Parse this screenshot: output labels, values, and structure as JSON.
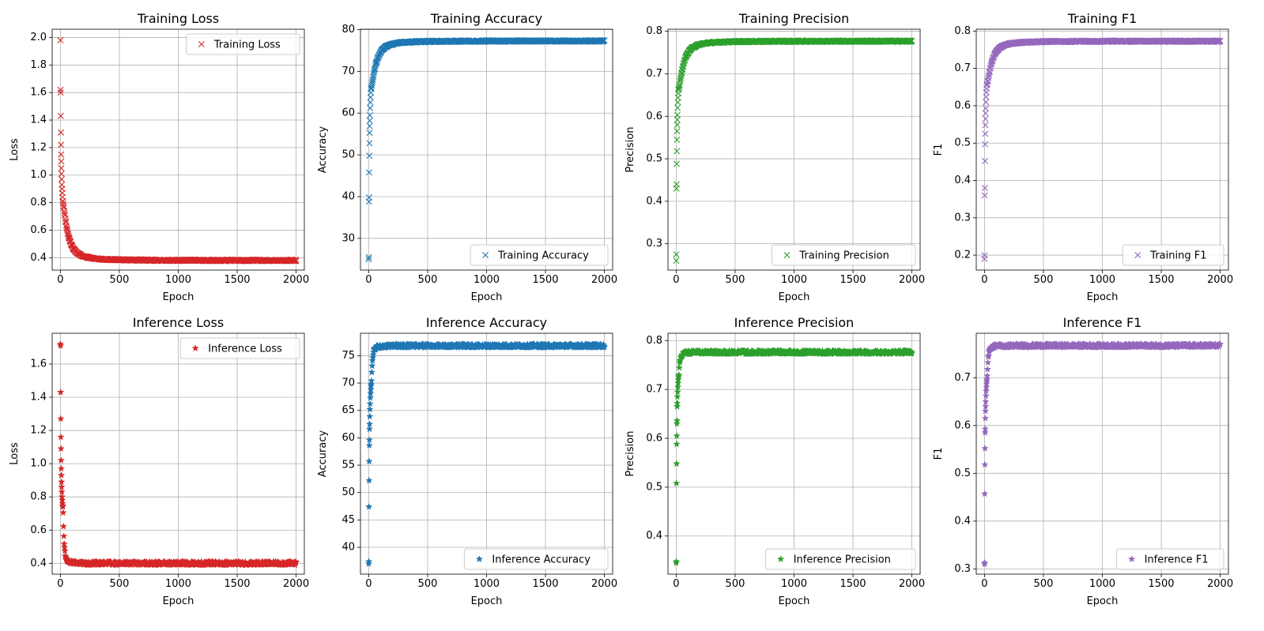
{
  "chart_data": [
    {
      "type": "scatter",
      "title": "Training Loss",
      "xlabel": "Epoch",
      "ylabel": "Loss",
      "marker": "x",
      "color": "#d62728",
      "xlim": [
        -70,
        2070
      ],
      "ylim": [
        0.31,
        2.06
      ],
      "xticks": [
        0,
        500,
        1000,
        1500,
        2000
      ],
      "yticks": [
        0.4,
        0.6,
        0.8,
        1.0,
        1.2,
        1.4,
        1.6,
        1.8,
        2.0
      ],
      "ytick_decimals": 1,
      "grid": true,
      "legend_position": "upper right",
      "series": [
        {
          "name": "Training Loss",
          "early": [
            [
              0,
              1.98
            ],
            [
              1,
              1.62
            ],
            [
              2,
              1.6
            ],
            [
              3,
              1.43
            ],
            [
              4,
              1.31
            ],
            [
              5,
              1.22
            ],
            [
              6,
              1.15
            ],
            [
              7,
              1.1
            ],
            [
              8,
              1.05
            ],
            [
              9,
              1.01
            ],
            [
              10,
              0.97
            ],
            [
              12,
              0.93
            ],
            [
              14,
              0.9
            ],
            [
              16,
              0.87
            ],
            [
              18,
              0.84
            ],
            [
              20,
              0.81
            ]
          ],
          "curve": {
            "start": 20,
            "start_value": 0.81,
            "final": 0.38,
            "curve_rate": 0.00035,
            "end": 2000
          }
        }
      ]
    },
    {
      "type": "scatter",
      "title": "Training Accuracy",
      "xlabel": "Epoch",
      "ylabel": "Accuracy",
      "marker": "x",
      "color": "#1f77b4",
      "xlim": [
        -70,
        2070
      ],
      "ylim": [
        22.4,
        80.1
      ],
      "xticks": [
        0,
        500,
        1000,
        1500,
        2000
      ],
      "yticks": [
        30,
        40,
        50,
        60,
        70,
        80
      ],
      "ytick_decimals": 0,
      "grid": true,
      "legend_position": "lower right",
      "series": [
        {
          "name": "Training Accuracy",
          "early": [
            [
              0,
              25.0
            ],
            [
              1,
              25.5
            ],
            [
              2,
              38.8
            ],
            [
              3,
              39.8
            ],
            [
              4,
              45.8
            ],
            [
              5,
              49.8
            ],
            [
              6,
              52.8
            ],
            [
              7,
              55.3
            ],
            [
              8,
              56.9
            ],
            [
              9,
              58.2
            ],
            [
              10,
              59.5
            ],
            [
              12,
              61.2
            ],
            [
              14,
              62.6
            ],
            [
              16,
              63.8
            ],
            [
              18,
              64.9
            ],
            [
              20,
              65.8
            ]
          ],
          "curve": {
            "start": 20,
            "start_value": 65.8,
            "final": 77.3,
            "curve_rate": 0.00035,
            "end": 2000
          }
        }
      ]
    },
    {
      "type": "scatter",
      "title": "Training Precision",
      "xlabel": "Epoch",
      "ylabel": "Precision",
      "marker": "x",
      "color": "#2ca02c",
      "xlim": [
        -70,
        2070
      ],
      "ylim": [
        0.238,
        0.805
      ],
      "xticks": [
        0,
        500,
        1000,
        1500,
        2000
      ],
      "yticks": [
        0.3,
        0.4,
        0.5,
        0.6,
        0.7,
        0.8
      ],
      "ytick_decimals": 1,
      "grid": true,
      "legend_position": "lower right",
      "series": [
        {
          "name": "Training Precision",
          "early": [
            [
              0,
              0.26
            ],
            [
              1,
              0.275
            ],
            [
              2,
              0.43
            ],
            [
              3,
              0.44
            ],
            [
              4,
              0.488
            ],
            [
              5,
              0.518
            ],
            [
              6,
              0.545
            ],
            [
              7,
              0.565
            ],
            [
              8,
              0.58
            ],
            [
              9,
              0.592
            ],
            [
              10,
              0.603
            ],
            [
              12,
              0.62
            ],
            [
              14,
              0.633
            ],
            [
              16,
              0.644
            ],
            [
              18,
              0.654
            ],
            [
              20,
              0.662
            ]
          ],
          "curve": {
            "start": 20,
            "start_value": 0.662,
            "final": 0.777,
            "curve_rate": 0.00035,
            "end": 2000
          }
        }
      ]
    },
    {
      "type": "scatter",
      "title": "Training F1",
      "xlabel": "Epoch",
      "ylabel": "F1",
      "marker": "x",
      "color": "#9467bd",
      "xlim": [
        -70,
        2070
      ],
      "ylim": [
        0.16,
        0.805
      ],
      "xticks": [
        0,
        500,
        1000,
        1500,
        2000
      ],
      "yticks": [
        0.2,
        0.3,
        0.4,
        0.5,
        0.6,
        0.7,
        0.8
      ],
      "ytick_decimals": 1,
      "grid": true,
      "legend_position": "lower right",
      "series": [
        {
          "name": "Training F1",
          "early": [
            [
              0,
              0.19
            ],
            [
              1,
              0.2
            ],
            [
              2,
              0.36
            ],
            [
              3,
              0.38
            ],
            [
              4,
              0.452
            ],
            [
              5,
              0.497
            ],
            [
              6,
              0.525
            ],
            [
              7,
              0.548
            ],
            [
              8,
              0.565
            ],
            [
              9,
              0.58
            ],
            [
              10,
              0.593
            ],
            [
              12,
              0.61
            ],
            [
              14,
              0.624
            ],
            [
              16,
              0.636
            ],
            [
              18,
              0.646
            ],
            [
              20,
              0.655
            ]
          ],
          "curve": {
            "start": 20,
            "start_value": 0.655,
            "final": 0.773,
            "curve_rate": 0.00035,
            "end": 2000
          }
        }
      ]
    },
    {
      "type": "scatter",
      "title": "Inference Loss",
      "xlabel": "Epoch",
      "ylabel": "Loss",
      "marker": "star",
      "color": "#d62728",
      "xlim": [
        -70,
        2070
      ],
      "ylim": [
        0.335,
        1.785
      ],
      "xticks": [
        0,
        500,
        1000,
        1500,
        2000
      ],
      "yticks": [
        0.4,
        0.6,
        0.8,
        1.0,
        1.2,
        1.4,
        1.6
      ],
      "ytick_decimals": 1,
      "grid": true,
      "legend_position": "upper right",
      "series": [
        {
          "name": "Inference Loss",
          "early": [
            [
              0,
              1.72
            ],
            [
              1,
              1.71
            ],
            [
              2,
              1.43
            ],
            [
              3,
              1.27
            ],
            [
              4,
              1.16
            ],
            [
              5,
              1.09
            ],
            [
              6,
              1.02
            ],
            [
              7,
              0.97
            ],
            [
              8,
              0.93
            ],
            [
              9,
              0.89
            ],
            [
              10,
              0.86
            ],
            [
              12,
              0.83
            ],
            [
              14,
              0.8
            ],
            [
              16,
              0.78
            ],
            [
              18,
              0.76
            ],
            [
              20,
              0.74
            ]
          ],
          "curve": {
            "start": 20,
            "start_value": 0.74,
            "final": 0.4,
            "curve_rate": 0.012,
            "end": 2000
          }
        }
      ]
    },
    {
      "type": "scatter",
      "title": "Inference Accuracy",
      "xlabel": "Epoch",
      "ylabel": "Accuracy",
      "marker": "star",
      "color": "#1f77b4",
      "xlim": [
        -70,
        2070
      ],
      "ylim": [
        35.1,
        79.1
      ],
      "xticks": [
        0,
        500,
        1000,
        1500,
        2000
      ],
      "yticks": [
        40,
        45,
        50,
        55,
        60,
        65,
        70,
        75
      ],
      "ytick_decimals": 0,
      "grid": true,
      "legend_position": "lower right",
      "series": [
        {
          "name": "Inference Accuracy",
          "early": [
            [
              0,
              37.0
            ],
            [
              1,
              37.4
            ],
            [
              2,
              47.4
            ],
            [
              3,
              52.2
            ],
            [
              4,
              55.7
            ],
            [
              5,
              58.6
            ],
            [
              6,
              59.6
            ],
            [
              7,
              61.6
            ],
            [
              8,
              62.5
            ],
            [
              9,
              63.9
            ],
            [
              10,
              65.2
            ],
            [
              12,
              66.2
            ],
            [
              14,
              67.3
            ],
            [
              16,
              68.1
            ],
            [
              18,
              68.8
            ],
            [
              20,
              69.5
            ]
          ],
          "curve": {
            "start": 20,
            "start_value": 69.5,
            "final": 76.8,
            "curve_rate": 0.012,
            "end": 2000
          }
        }
      ]
    },
    {
      "type": "scatter",
      "title": "Inference Precision",
      "xlabel": "Epoch",
      "ylabel": "Precision",
      "marker": "star",
      "color": "#2ca02c",
      "xlim": [
        -70,
        2070
      ],
      "ylim": [
        0.322,
        0.815
      ],
      "xticks": [
        0,
        500,
        1000,
        1500,
        2000
      ],
      "yticks": [
        0.4,
        0.5,
        0.6,
        0.7,
        0.8
      ],
      "ytick_decimals": 1,
      "grid": true,
      "legend_position": "lower right",
      "series": [
        {
          "name": "Inference Precision",
          "early": [
            [
              0,
              0.345
            ],
            [
              1,
              0.348
            ],
            [
              2,
              0.508
            ],
            [
              3,
              0.548
            ],
            [
              4,
              0.588
            ],
            [
              5,
              0.605
            ],
            [
              6,
              0.63
            ],
            [
              7,
              0.636
            ],
            [
              8,
              0.665
            ],
            [
              9,
              0.672
            ],
            [
              10,
              0.685
            ],
            [
              12,
              0.695
            ],
            [
              14,
              0.705
            ],
            [
              16,
              0.713
            ],
            [
              18,
              0.72
            ],
            [
              20,
              0.726
            ]
          ],
          "curve": {
            "start": 20,
            "start_value": 0.726,
            "final": 0.776,
            "curve_rate": 0.012,
            "end": 2000
          }
        }
      ]
    },
    {
      "type": "scatter",
      "title": "Inference F1",
      "xlabel": "Epoch",
      "ylabel": "F1",
      "marker": "star",
      "color": "#9467bd",
      "xlim": [
        -70,
        2070
      ],
      "ylim": [
        0.289,
        0.793
      ],
      "xticks": [
        0,
        500,
        1000,
        1500,
        2000
      ],
      "yticks": [
        0.3,
        0.4,
        0.5,
        0.6,
        0.7
      ],
      "ytick_decimals": 1,
      "grid": true,
      "legend_position": "lower right",
      "series": [
        {
          "name": "Inference F1",
          "early": [
            [
              0,
              0.31
            ],
            [
              1,
              0.313
            ],
            [
              2,
              0.457
            ],
            [
              3,
              0.518
            ],
            [
              4,
              0.552
            ],
            [
              5,
              0.585
            ],
            [
              6,
              0.593
            ],
            [
              7,
              0.615
            ],
            [
              8,
              0.63
            ],
            [
              9,
              0.64
            ],
            [
              10,
              0.65
            ],
            [
              12,
              0.662
            ],
            [
              14,
              0.672
            ],
            [
              16,
              0.68
            ],
            [
              18,
              0.687
            ],
            [
              20,
              0.693
            ]
          ],
          "curve": {
            "start": 20,
            "start_value": 0.693,
            "final": 0.767,
            "curve_rate": 0.012,
            "end": 2000
          }
        }
      ]
    }
  ]
}
